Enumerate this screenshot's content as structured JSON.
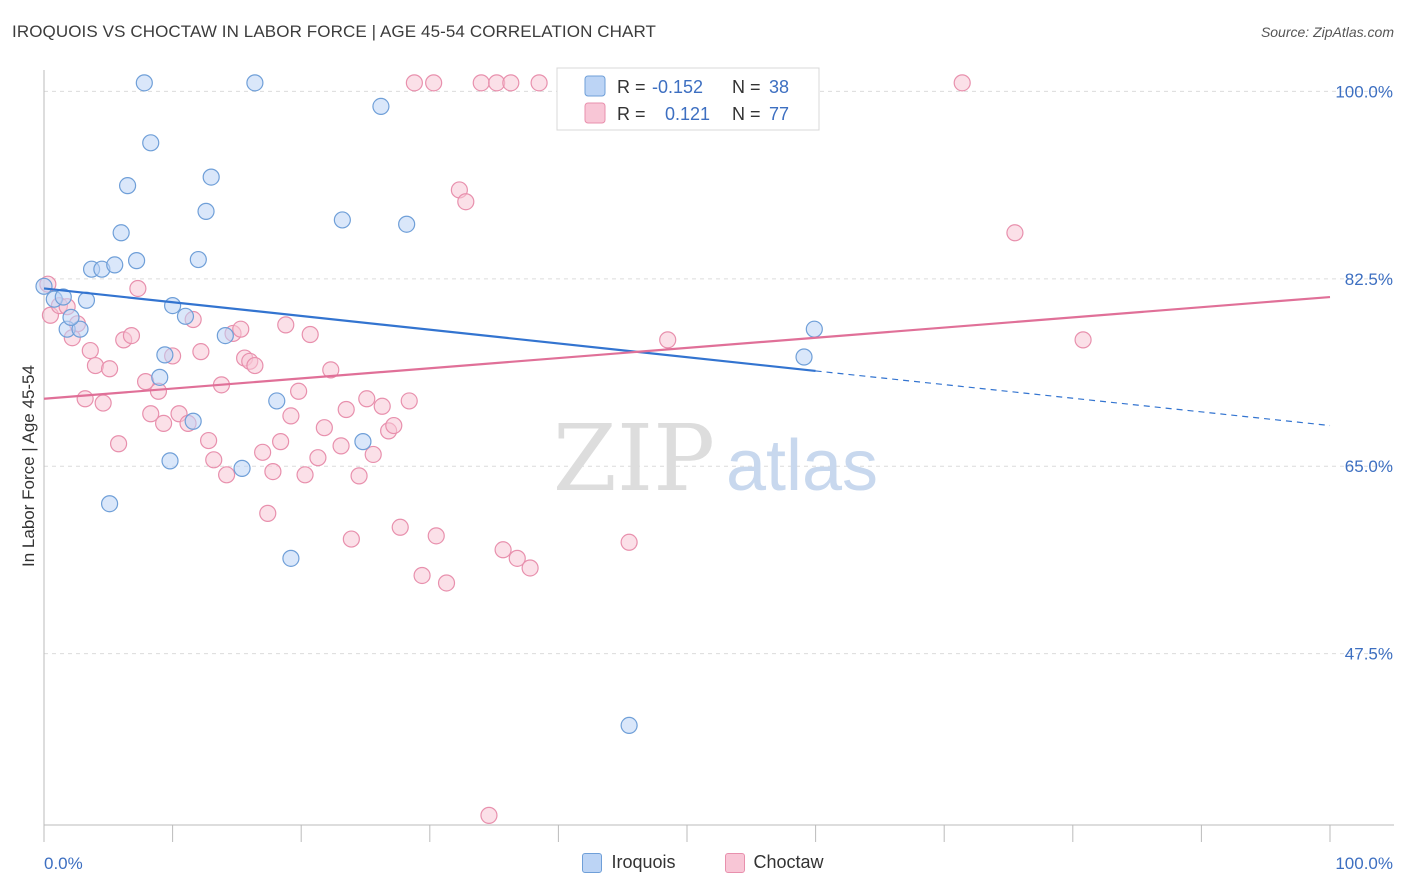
{
  "title": "IROQUOIS VS CHOCTAW IN LABOR FORCE | AGE 45-54 CORRELATION CHART",
  "source": "Source: ZipAtlas.com",
  "watermark": {
    "zip": "ZIP",
    "atlas": "atlas"
  },
  "colors": {
    "iroquois_fill": "#bcd4f5",
    "iroquois_stroke": "#6f9fd8",
    "iroquois_line": "#3374d0",
    "choctaw_fill": "#f8c6d6",
    "choctaw_stroke": "#e890ad",
    "choctaw_line": "#e07098",
    "tick_label": "#3d6fc1"
  },
  "stats_legend": [
    {
      "series": "iroquois",
      "r_label": "R = ",
      "r_value": "-0.152",
      "n_label": "N = ",
      "n_value": "38"
    },
    {
      "series": "choctaw",
      "r_label": "R = ",
      "r_value": "0.121",
      "n_label": "N = ",
      "n_value": "77"
    }
  ],
  "chart_data": {
    "type": "scatter",
    "title": "IROQUOIS VS CHOCTAW IN LABOR FORCE | AGE 45-54 CORRELATION CHART",
    "xlabel": "",
    "ylabel": "In Labor Force | Age 45-54",
    "xlim": [
      0,
      100
    ],
    "ylim": [
      31.5,
      102
    ],
    "x_tick_labels": [
      "0.0%",
      "100.0%"
    ],
    "y_ticks": [
      {
        "value": 47.5,
        "label": "47.5%"
      },
      {
        "value": 65.0,
        "label": "65.0%"
      },
      {
        "value": 82.5,
        "label": "82.5%"
      },
      {
        "value": 100.0,
        "label": "100.0%"
      }
    ],
    "grid": true,
    "legend_position": "bottom",
    "series": [
      {
        "name": "Iroquois",
        "trend": {
          "x0": 0,
          "y0": 81.6,
          "x1": 60,
          "y1": 73.9,
          "dash_x1": 100,
          "dash_y1": 68.8
        },
        "points": [
          [
            0,
            81.8
          ],
          [
            0.8,
            80.6
          ],
          [
            1.5,
            80.8
          ],
          [
            1.8,
            77.8
          ],
          [
            2.8,
            77.8
          ],
          [
            3.7,
            83.4
          ],
          [
            4.5,
            83.4
          ],
          [
            5.5,
            83.8
          ],
          [
            6,
            86.8
          ],
          [
            6.5,
            91.2
          ],
          [
            7.2,
            84.2
          ],
          [
            7.8,
            100.8
          ],
          [
            8.3,
            95.2
          ],
          [
            9,
            73.3
          ],
          [
            9.4,
            75.4
          ],
          [
            9.8,
            65.5
          ],
          [
            10,
            80.0
          ],
          [
            11,
            79.0
          ],
          [
            11.6,
            69.2
          ],
          [
            12,
            84.3
          ],
          [
            12.6,
            88.8
          ],
          [
            13,
            92.0
          ],
          [
            14.1,
            77.2
          ],
          [
            15.4,
            64.8
          ],
          [
            16.4,
            100.8
          ],
          [
            18.1,
            71.1
          ],
          [
            19.2,
            56.4
          ],
          [
            23.2,
            88.0
          ],
          [
            24.8,
            67.3
          ],
          [
            26.2,
            98.6
          ],
          [
            28.2,
            87.6
          ],
          [
            42,
            100.8
          ],
          [
            45.5,
            40.8
          ],
          [
            59.1,
            75.2
          ],
          [
            59.9,
            77.8
          ],
          [
            2.1,
            78.9
          ],
          [
            3.3,
            80.5
          ],
          [
            5.1,
            61.5
          ]
        ]
      },
      {
        "name": "Choctaw",
        "trend": {
          "x0": 0,
          "y0": 71.3,
          "x1": 100,
          "y1": 80.8
        },
        "points": [
          [
            0.3,
            82.0
          ],
          [
            0.5,
            79.1
          ],
          [
            1.2,
            80.0
          ],
          [
            1.8,
            79.9
          ],
          [
            2.2,
            77.0
          ],
          [
            2.6,
            78.3
          ],
          [
            3.2,
            71.3
          ],
          [
            3.6,
            75.8
          ],
          [
            4.0,
            74.4
          ],
          [
            4.6,
            70.9
          ],
          [
            5.1,
            74.1
          ],
          [
            5.8,
            67.1
          ],
          [
            6.2,
            76.8
          ],
          [
            6.8,
            77.2
          ],
          [
            7.3,
            81.6
          ],
          [
            7.9,
            72.9
          ],
          [
            8.3,
            69.9
          ],
          [
            8.9,
            72.0
          ],
          [
            9.3,
            69.0
          ],
          [
            10.0,
            75.3
          ],
          [
            10.5,
            69.9
          ],
          [
            11.2,
            69.0
          ],
          [
            11.6,
            78.7
          ],
          [
            12.2,
            75.7
          ],
          [
            12.8,
            67.4
          ],
          [
            13.2,
            65.6
          ],
          [
            13.8,
            72.6
          ],
          [
            14.2,
            64.2
          ],
          [
            14.7,
            77.4
          ],
          [
            15.3,
            77.8
          ],
          [
            15.6,
            75.1
          ],
          [
            16.0,
            74.8
          ],
          [
            16.4,
            74.4
          ],
          [
            17.0,
            66.3
          ],
          [
            17.4,
            60.6
          ],
          [
            17.8,
            64.5
          ],
          [
            18.4,
            67.3
          ],
          [
            18.8,
            78.2
          ],
          [
            19.2,
            69.7
          ],
          [
            19.8,
            72.0
          ],
          [
            20.3,
            64.2
          ],
          [
            20.7,
            77.3
          ],
          [
            21.3,
            65.8
          ],
          [
            21.8,
            68.6
          ],
          [
            22.3,
            74.0
          ],
          [
            23.1,
            66.9
          ],
          [
            23.5,
            70.3
          ],
          [
            23.9,
            58.2
          ],
          [
            24.5,
            64.1
          ],
          [
            25.1,
            71.3
          ],
          [
            25.6,
            66.1
          ],
          [
            26.3,
            70.6
          ],
          [
            26.8,
            68.3
          ],
          [
            27.2,
            68.8
          ],
          [
            27.7,
            59.3
          ],
          [
            28.4,
            71.1
          ],
          [
            28.8,
            100.8
          ],
          [
            29.4,
            54.8
          ],
          [
            30.3,
            100.8
          ],
          [
            30.5,
            58.5
          ],
          [
            31.3,
            54.1
          ],
          [
            32.3,
            90.8
          ],
          [
            32.8,
            89.7
          ],
          [
            34.0,
            100.8
          ],
          [
            34.6,
            32.4
          ],
          [
            35.2,
            100.8
          ],
          [
            35.7,
            57.2
          ],
          [
            36.3,
            100.8
          ],
          [
            36.8,
            56.4
          ],
          [
            37.8,
            55.5
          ],
          [
            45.5,
            57.9
          ],
          [
            45.9,
            100.8
          ],
          [
            48.5,
            76.8
          ],
          [
            71.4,
            100.8
          ],
          [
            75.5,
            86.8
          ],
          [
            80.8,
            76.8
          ],
          [
            38.5,
            100.8
          ]
        ]
      }
    ]
  },
  "bottom_legend": [
    {
      "series": "iroquois",
      "label": "Iroquois"
    },
    {
      "series": "choctaw",
      "label": "Choctaw"
    }
  ]
}
